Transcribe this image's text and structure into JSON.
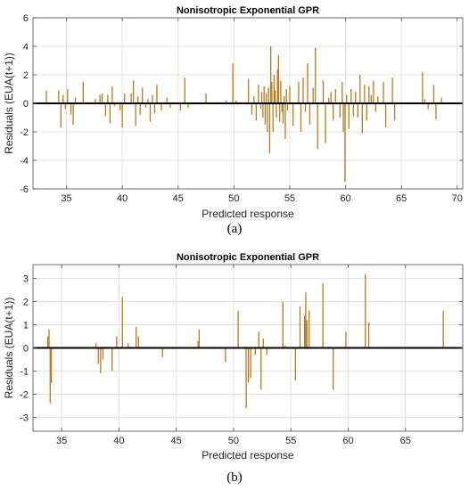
{
  "captions": [
    "(a)",
    "(b)"
  ],
  "chart_data": [
    {
      "type": "bar",
      "title": "Nonisotropic Exponential GPR",
      "xlabel": "Predicted response",
      "ylabel": "Residuals (EUA(t+1))",
      "xlim": [
        32,
        70.5
      ],
      "ylim": [
        -6,
        6
      ],
      "xticks": [
        35,
        40,
        45,
        50,
        55,
        60,
        65,
        70
      ],
      "yticks": [
        -6,
        -4,
        -2,
        0,
        2,
        4,
        6
      ],
      "grid": true,
      "bar_color": "#b87a1e",
      "zero_line_color": "#000000",
      "points": [
        [
          33.2,
          0.9
        ],
        [
          34.3,
          0.9
        ],
        [
          34.5,
          -1.7
        ],
        [
          34.7,
          0.6
        ],
        [
          34.9,
          -0.4
        ],
        [
          35.1,
          1.0
        ],
        [
          35.4,
          -0.8
        ],
        [
          35.6,
          -1.5
        ],
        [
          35.8,
          0.4
        ],
        [
          36.5,
          1.5
        ],
        [
          37.6,
          0.3
        ],
        [
          38.0,
          0.6
        ],
        [
          38.2,
          0.7
        ],
        [
          38.5,
          -0.9
        ],
        [
          38.7,
          0.6
        ],
        [
          38.9,
          -1.4
        ],
        [
          39.1,
          1.2
        ],
        [
          39.3,
          -0.2
        ],
        [
          39.8,
          -0.5
        ],
        [
          40.0,
          -1.7
        ],
        [
          40.2,
          0.7
        ],
        [
          40.8,
          0.7
        ],
        [
          41.0,
          1.6
        ],
        [
          41.2,
          -1.6
        ],
        [
          41.4,
          0.5
        ],
        [
          41.6,
          -0.8
        ],
        [
          41.8,
          1.1
        ],
        [
          42.1,
          -0.3
        ],
        [
          42.3,
          0.3
        ],
        [
          42.5,
          -1.3
        ],
        [
          42.7,
          0.6
        ],
        [
          42.9,
          -0.7
        ],
        [
          43.1,
          1.3
        ],
        [
          43.5,
          -0.5
        ],
        [
          44.0,
          0.4
        ],
        [
          44.3,
          -0.3
        ],
        [
          45.2,
          -0.5
        ],
        [
          45.6,
          1.8
        ],
        [
          45.9,
          -0.3
        ],
        [
          47.5,
          0.7
        ],
        [
          49.3,
          0.2
        ],
        [
          49.9,
          2.8
        ],
        [
          50.2,
          0.2
        ],
        [
          51.3,
          1.7
        ],
        [
          51.6,
          -0.8
        ],
        [
          51.8,
          0.5
        ],
        [
          52.0,
          -1.2
        ],
        [
          52.2,
          1.3
        ],
        [
          52.4,
          -0.4
        ],
        [
          52.5,
          0.8
        ],
        [
          52.6,
          -1.0
        ],
        [
          52.7,
          1.2
        ],
        [
          52.8,
          -1.5
        ],
        [
          52.9,
          0.7
        ],
        [
          53.0,
          -2.0
        ],
        [
          53.1,
          1.1
        ],
        [
          53.2,
          -3.5
        ],
        [
          53.3,
          4.0
        ],
        [
          53.4,
          1.5
        ],
        [
          53.5,
          -2.0
        ],
        [
          53.6,
          2.0
        ],
        [
          53.7,
          0.9
        ],
        [
          53.8,
          -1.0
        ],
        [
          53.9,
          2.4
        ],
        [
          54.0,
          3.4
        ],
        [
          54.1,
          -1.3
        ],
        [
          54.2,
          1.6
        ],
        [
          54.3,
          -0.6
        ],
        [
          54.4,
          -1.4
        ],
        [
          54.5,
          0.5
        ],
        [
          54.6,
          -2.5
        ],
        [
          54.7,
          1.0
        ],
        [
          54.8,
          -0.5
        ],
        [
          55.0,
          1.2
        ],
        [
          55.3,
          -1.6
        ],
        [
          55.8,
          1.5
        ],
        [
          56.0,
          -2.0
        ],
        [
          56.2,
          1.8
        ],
        [
          56.4,
          -0.6
        ],
        [
          56.6,
          2.8
        ],
        [
          56.8,
          -1.5
        ],
        [
          57.1,
          1.1
        ],
        [
          57.3,
          3.9
        ],
        [
          57.5,
          -3.2
        ],
        [
          58.0,
          1.6
        ],
        [
          58.2,
          -2.8
        ],
        [
          58.5,
          0.4
        ],
        [
          58.7,
          0.8
        ],
        [
          58.9,
          -1.2
        ],
        [
          59.1,
          1.0
        ],
        [
          59.5,
          -1.0
        ],
        [
          59.7,
          1.5
        ],
        [
          59.8,
          -2.0
        ],
        [
          59.95,
          -5.5
        ],
        [
          60.1,
          0.6
        ],
        [
          60.3,
          -1.8
        ],
        [
          60.5,
          1.0
        ],
        [
          60.7,
          -0.9
        ],
        [
          60.9,
          0.8
        ],
        [
          61.1,
          -1.0
        ],
        [
          61.3,
          2.0
        ],
        [
          61.5,
          -2.1
        ],
        [
          61.7,
          1.3
        ],
        [
          61.9,
          -1.2
        ],
        [
          62.1,
          1.2
        ],
        [
          62.3,
          0.6
        ],
        [
          62.5,
          1.6
        ],
        [
          62.7,
          -0.6
        ],
        [
          62.9,
          0.5
        ],
        [
          63.4,
          1.5
        ],
        [
          63.6,
          -1.7
        ],
        [
          64.2,
          1.8
        ],
        [
          64.4,
          -1.2
        ],
        [
          66.9,
          2.2
        ],
        [
          67.1,
          0.3
        ],
        [
          67.4,
          -0.4
        ],
        [
          67.9,
          1.3
        ],
        [
          68.1,
          -1.1
        ],
        [
          68.6,
          0.4
        ]
      ]
    },
    {
      "type": "bar",
      "title": "Nonisotropic Exponential GPR",
      "xlabel": "Predicted response",
      "ylabel": "Residuals (EUA(t+1))",
      "xlim": [
        32.5,
        70
      ],
      "ylim": [
        -3.6,
        3.6
      ],
      "xticks": [
        35,
        40,
        45,
        50,
        55,
        60,
        65
      ],
      "yticks": [
        -3,
        -2,
        -1,
        0,
        1,
        2,
        3
      ],
      "grid": true,
      "bar_color": "#b87a1e",
      "zero_line_color": "#000000",
      "points": [
        [
          33.8,
          0.5
        ],
        [
          33.9,
          0.8
        ],
        [
          34.0,
          -2.4
        ],
        [
          34.1,
          -1.5
        ],
        [
          38.0,
          0.2
        ],
        [
          38.2,
          -0.7
        ],
        [
          38.4,
          -1.1
        ],
        [
          38.6,
          -0.5
        ],
        [
          39.4,
          -1.0
        ],
        [
          39.8,
          0.5
        ],
        [
          40.3,
          2.2
        ],
        [
          40.8,
          0.2
        ],
        [
          41.5,
          0.9
        ],
        [
          41.7,
          0.5
        ],
        [
          43.8,
          -0.4
        ],
        [
          46.9,
          0.3
        ],
        [
          47.0,
          0.8
        ],
        [
          49.3,
          -0.6
        ],
        [
          50.4,
          1.6
        ],
        [
          51.1,
          -2.6
        ],
        [
          51.3,
          -1.5
        ],
        [
          51.5,
          -1.3
        ],
        [
          51.9,
          -0.3
        ],
        [
          52.2,
          0.7
        ],
        [
          52.4,
          -1.8
        ],
        [
          52.6,
          0.4
        ],
        [
          52.9,
          -0.3
        ],
        [
          54.3,
          2.0
        ],
        [
          54.5,
          0.1
        ],
        [
          55.4,
          -1.4
        ],
        [
          55.8,
          1.8
        ],
        [
          56.2,
          1.4
        ],
        [
          56.3,
          2.4
        ],
        [
          56.4,
          1.2
        ],
        [
          56.6,
          1.6
        ],
        [
          57.8,
          2.8
        ],
        [
          58.7,
          -1.8
        ],
        [
          59.8,
          0.7
        ],
        [
          61.5,
          3.2
        ],
        [
          61.8,
          1.1
        ],
        [
          68.3,
          1.6
        ]
      ]
    }
  ]
}
